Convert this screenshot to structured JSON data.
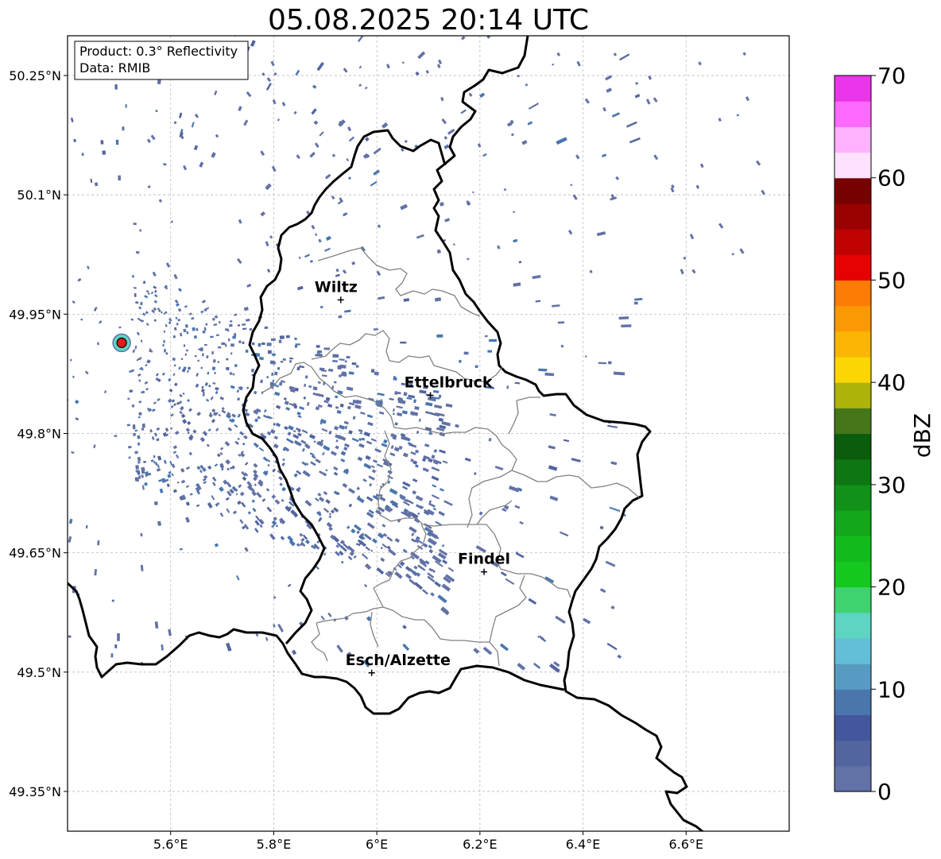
{
  "title": "05.08.2025 20:14 UTC",
  "info_box": {
    "product": "Product: 0.3° Reflectivity",
    "data_source": "Data: RMIB"
  },
  "map": {
    "lon_range": [
      5.4,
      6.8
    ],
    "lat_range": [
      49.3,
      50.3
    ],
    "grid": true,
    "x_ticks": [
      {
        "value": 5.6,
        "label": "5.6°E"
      },
      {
        "value": 5.8,
        "label": "5.8°E"
      },
      {
        "value": 6.0,
        "label": "6°E"
      },
      {
        "value": 6.2,
        "label": "6.2°E"
      },
      {
        "value": 6.4,
        "label": "6.4°E"
      },
      {
        "value": 6.6,
        "label": "6.6°E"
      }
    ],
    "y_ticks": [
      {
        "value": 50.25,
        "label": "50.25°N"
      },
      {
        "value": 50.1,
        "label": "50.1°N"
      },
      {
        "value": 49.95,
        "label": "49.95°N"
      },
      {
        "value": 49.8,
        "label": "49.8°N"
      },
      {
        "value": 49.65,
        "label": "49.65°N"
      },
      {
        "value": 49.5,
        "label": "49.5°N"
      },
      {
        "value": 49.35,
        "label": "49.35°N"
      }
    ],
    "cities": [
      {
        "name": "Wiltz",
        "lon": 5.93,
        "lat": 49.968
      },
      {
        "name": "Ettelbruck",
        "lon": 6.104,
        "lat": 49.848
      },
      {
        "name": "Findel",
        "lon": 6.208,
        "lat": 49.626
      },
      {
        "name": "Esch/Alzette",
        "lon": 5.99,
        "lat": 49.499
      }
    ],
    "radar_site": {
      "lon": 5.505,
      "lat": 49.914,
      "color": "#e31a1c"
    }
  },
  "colorbar": {
    "label": "dBZ",
    "min": 0,
    "max": 70,
    "step": 2.5,
    "ticks": [
      0,
      10,
      20,
      30,
      40,
      50,
      60,
      70
    ],
    "colors": [
      "#6272a6",
      "#53659f",
      "#44579c",
      "#4a76ad",
      "#579bc2",
      "#63bed8",
      "#5dd5c2",
      "#3fd36f",
      "#14c81e",
      "#12bb1c",
      "#12a81a",
      "#12911a",
      "#0e7612",
      "#0b5c0d",
      "#45761a",
      "#aeb30a",
      "#fbd603",
      "#fbb505",
      "#fb9904",
      "#fc7c05",
      "#e60202",
      "#c10202",
      "#9a0101",
      "#770101",
      "#fde1ff",
      "#feb2ff",
      "#fd6afd",
      "#ea35ea"
    ]
  }
}
